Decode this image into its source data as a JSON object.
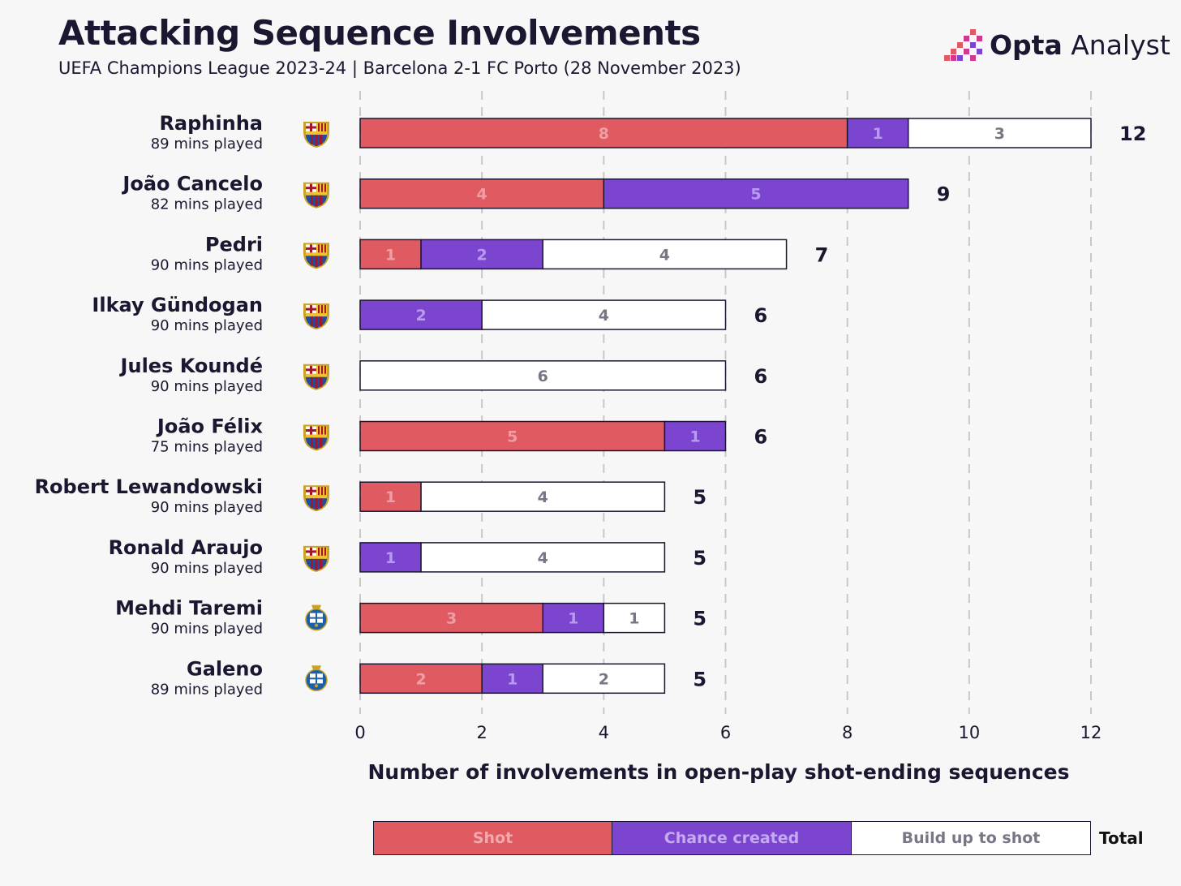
{
  "title": "Attacking Sequence Involvements",
  "subtitle": "UEFA Champions League 2023-24 | Barcelona 2-1 FC Porto (28 November 2023)",
  "brand": {
    "word1": "Opta",
    "word2": "Analyst"
  },
  "colors": {
    "shot": "#e05a62",
    "chance": "#7b45d0",
    "buildup": "#ffffff",
    "text_dark": "#1c1730",
    "grid": "#c8c8c8",
    "barca_blue": "#1f4ea0",
    "barca_red": "#a4162e",
    "porto_blue": "#1d5ea8"
  },
  "chart_data": {
    "type": "bar",
    "orientation": "horizontal",
    "stacked": true,
    "categories": [
      "Raphinha",
      "João Cancelo",
      "Pedri",
      "Ilkay Gündogan",
      "Jules Koundé",
      "João Félix",
      "Robert Lewandowski",
      "Ronald Araujo",
      "Mehdi Taremi",
      "Galeno"
    ],
    "minutes": [
      "89 mins played",
      "82 mins played",
      "90 mins played",
      "90 mins played",
      "90 mins played",
      "75 mins played",
      "90 mins played",
      "90 mins played",
      "90 mins played",
      "89 mins played"
    ],
    "teams": [
      "Barcelona",
      "Barcelona",
      "Barcelona",
      "Barcelona",
      "Barcelona",
      "Barcelona",
      "Barcelona",
      "Barcelona",
      "FC Porto",
      "FC Porto"
    ],
    "series": [
      {
        "name": "Shot",
        "values": [
          8,
          4,
          1,
          0,
          0,
          5,
          1,
          0,
          3,
          2
        ]
      },
      {
        "name": "Chance created",
        "values": [
          1,
          5,
          2,
          2,
          0,
          1,
          0,
          1,
          1,
          1
        ]
      },
      {
        "name": "Build up to shot",
        "values": [
          3,
          0,
          4,
          4,
          6,
          0,
          4,
          4,
          1,
          2
        ]
      }
    ],
    "totals": [
      12,
      9,
      7,
      6,
      6,
      6,
      5,
      5,
      5,
      5
    ],
    "xlabel": "Number of involvements in open-play shot-ending sequences",
    "xlim": [
      0,
      12
    ],
    "xticks": [
      0,
      2,
      4,
      6,
      8,
      10,
      12
    ],
    "grid": "vertical dashed",
    "legend_position": "bottom",
    "legend_total_label": "Total"
  }
}
